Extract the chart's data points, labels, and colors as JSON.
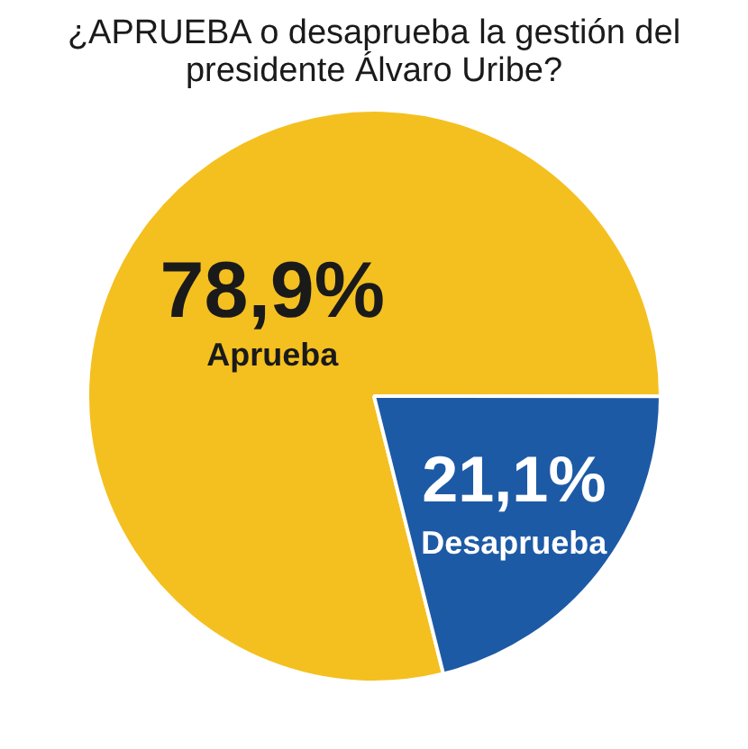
{
  "chart_data": {
    "type": "pie",
    "title": "¿APRUEBA o desaprueba la gestión del presidente Álvaro Uribe?",
    "categories": [
      "Aprueba",
      "Desaprueba"
    ],
    "values": [
      78.9,
      21.1
    ],
    "value_labels": [
      "78,9%",
      "21,1%"
    ],
    "colors": [
      "#f4c020",
      "#1d5aa6"
    ],
    "legend": false
  }
}
